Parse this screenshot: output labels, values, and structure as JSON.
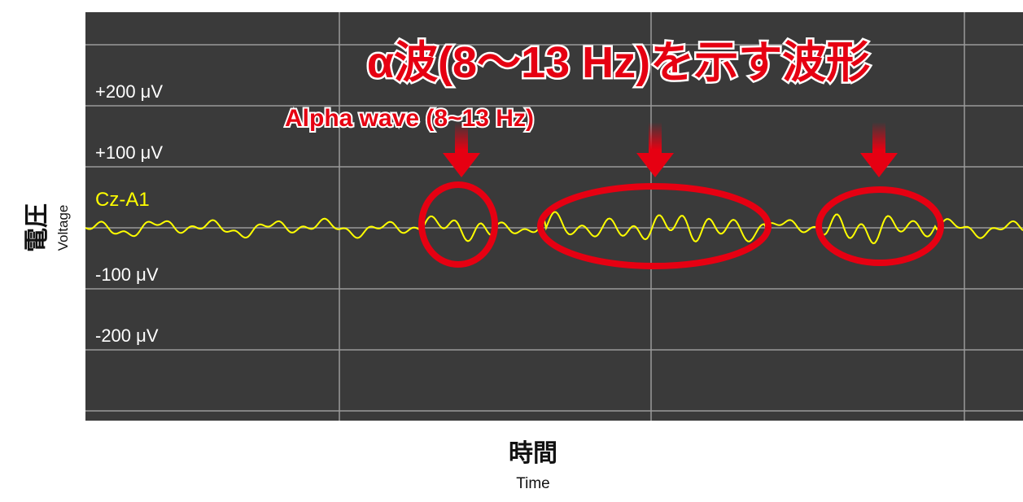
{
  "title": "α波(8〜13 Hz)を示す波形",
  "subtitle": "Alpha wave (8~13 Hz)",
  "channel": "Cz-A1",
  "y_axis": {
    "label": "電圧",
    "sublabel": "Voltage",
    "ticks": [
      "+200 μV",
      "+100 μV",
      "-100 μV",
      "-200 μV"
    ]
  },
  "x_axis": {
    "label": "時間",
    "sublabel": "Time"
  }
}
